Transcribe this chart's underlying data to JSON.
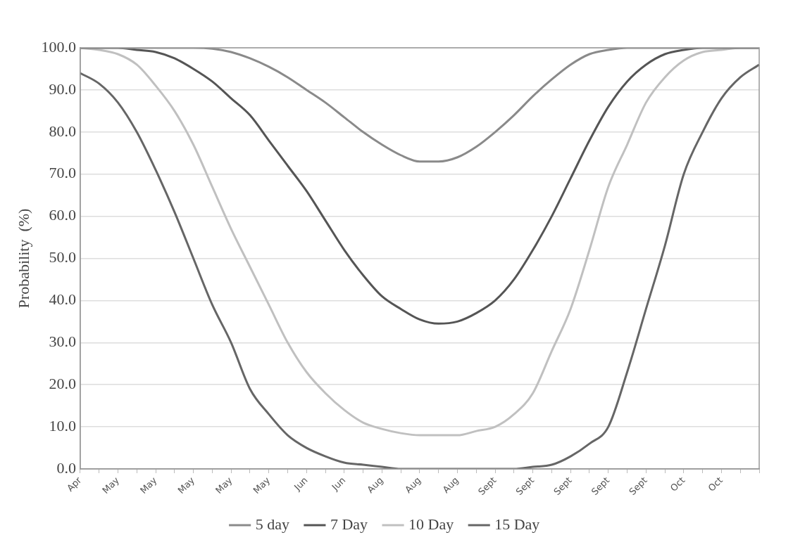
{
  "chart_data": {
    "type": "line",
    "ylabel": "Probability  (%)",
    "categories": [
      "Apr",
      null,
      "May",
      null,
      "May",
      null,
      "May",
      null,
      "May",
      null,
      "May",
      null,
      "Jun",
      null,
      "Jun",
      null,
      "Aug",
      null,
      "Aug",
      null,
      "Aug",
      null,
      "Sept",
      null,
      "Sept",
      null,
      "Sept",
      null,
      "Sept",
      null,
      "Sept",
      null,
      "Oct",
      null,
      "Oct",
      null,
      null
    ],
    "series": [
      {
        "name": "5 day",
        "color": "#8a8a8a",
        "values": [
          100,
          100,
          100,
          100,
          100,
          100,
          100,
          99.8,
          99,
          97.5,
          95.5,
          93,
          90,
          87,
          83.5,
          80,
          77,
          74.5,
          73,
          73,
          74,
          76.5,
          80,
          84,
          88.5,
          92.5,
          96,
          98.5,
          99.5,
          100,
          100,
          100,
          100,
          100,
          100,
          100,
          100
        ]
      },
      {
        "name": "7 Day",
        "color": "#555555",
        "values": [
          100,
          100,
          100,
          99.5,
          99,
          97.5,
          95,
          92,
          88,
          84,
          78,
          72,
          66,
          59,
          52,
          46,
          41,
          38,
          35.5,
          34.5,
          35,
          37,
          40,
          45,
          52,
          60,
          69,
          78,
          86,
          92,
          96,
          98.5,
          99.5,
          100,
          100,
          100,
          100
        ]
      },
      {
        "name": "10 Day",
        "color": "#c0c0c0",
        "values": [
          100,
          99.5,
          98.5,
          96,
          91,
          85,
          77,
          67,
          57,
          48,
          39,
          30,
          23,
          18,
          14,
          11,
          9.5,
          8.5,
          8,
          8,
          8,
          9,
          10,
          13,
          18,
          28,
          38,
          52,
          67,
          77,
          87,
          93,
          97,
          99,
          99.5,
          100,
          100
        ]
      },
      {
        "name": "15 Day",
        "color": "#666666",
        "values": [
          94,
          91.5,
          87,
          80,
          71,
          61,
          50,
          39,
          30,
          19,
          13,
          8,
          5,
          3,
          1.5,
          1,
          0.5,
          0,
          0,
          0,
          0,
          0,
          0,
          0,
          0.5,
          1,
          3,
          6,
          10,
          23,
          38,
          53,
          70,
          80,
          88,
          93,
          96
        ]
      }
    ],
    "ylim": [
      0,
      100
    ],
    "yticks": [
      {
        "value": 0,
        "label": "0.0"
      },
      {
        "value": 10,
        "label": "10.0"
      },
      {
        "value": 20,
        "label": "20.0"
      },
      {
        "value": 30,
        "label": "30.0"
      },
      {
        "value": 40,
        "label": "40.0"
      },
      {
        "value": 50,
        "label": "50.0"
      },
      {
        "value": 60,
        "label": "60.0"
      },
      {
        "value": 70,
        "label": "70.0"
      },
      {
        "value": 80,
        "label": "80.0"
      },
      {
        "value": 90,
        "label": "90.0"
      },
      {
        "value": 100,
        "label": "100.0"
      }
    ],
    "grid": "y",
    "legend": "bottom",
    "marker": "none",
    "line_style": "solid"
  }
}
